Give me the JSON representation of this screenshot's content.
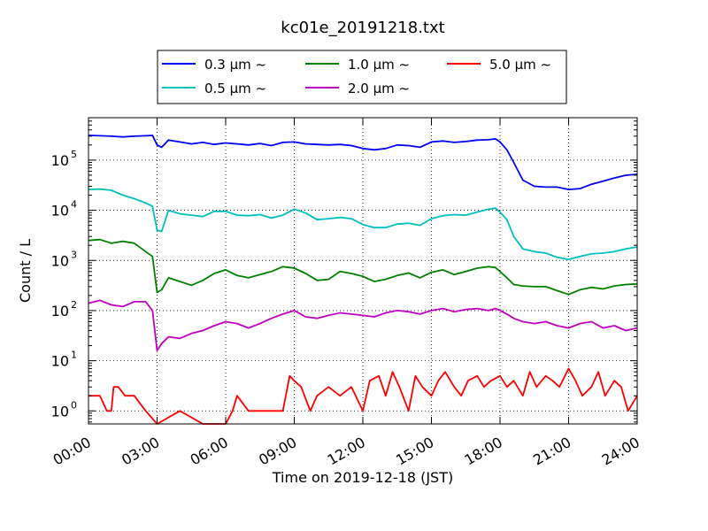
{
  "chart_data": {
    "type": "line",
    "title": "kc01e_20191218.txt",
    "xlabel": "Time on 2019-12-18 (JST)",
    "ylabel": "Count / L",
    "x_unit": "hour",
    "xlim": [
      0,
      24
    ],
    "ylim": [
      0.55,
      700000
    ],
    "yscale": "log",
    "grid": true,
    "legend_position": "top-center",
    "x_ticks": [
      {
        "value": 0,
        "label": "00:00"
      },
      {
        "value": 3,
        "label": "03:00"
      },
      {
        "value": 6,
        "label": "06:00"
      },
      {
        "value": 9,
        "label": "09:00"
      },
      {
        "value": 12,
        "label": "12:00"
      },
      {
        "value": 15,
        "label": "15:00"
      },
      {
        "value": 18,
        "label": "18:00"
      },
      {
        "value": 21,
        "label": "21:00"
      },
      {
        "value": 24,
        "label": "24:00"
      }
    ],
    "y_ticks": [
      {
        "value": 1,
        "base": "10",
        "exp": "0"
      },
      {
        "value": 10,
        "base": "10",
        "exp": "1"
      },
      {
        "value": 100,
        "base": "10",
        "exp": "2"
      },
      {
        "value": 1000,
        "base": "10",
        "exp": "3"
      },
      {
        "value": 10000,
        "base": "10",
        "exp": "4"
      },
      {
        "value": 100000,
        "base": "10",
        "exp": "5"
      }
    ],
    "series": [
      {
        "name": "0.3 µm  ~",
        "color": "#0000ff",
        "x": [
          0,
          0.5,
          1,
          1.5,
          2,
          2.5,
          2.8,
          3.0,
          3.2,
          3.5,
          4,
          4.5,
          5,
          5.5,
          6,
          6.5,
          7,
          7.5,
          8,
          8.5,
          9,
          9.5,
          10,
          10.5,
          11,
          11.5,
          12,
          12.5,
          13,
          13.5,
          14,
          14.5,
          15,
          15.5,
          16,
          16.5,
          17,
          17.5,
          17.8,
          18,
          18.3,
          18.6,
          19,
          19.5,
          20,
          20.5,
          21,
          21.5,
          22,
          22.5,
          23,
          23.5,
          24
        ],
        "y": [
          310000,
          305000,
          300000,
          290000,
          300000,
          305000,
          310000,
          200000,
          180000,
          250000,
          230000,
          210000,
          225000,
          205000,
          220000,
          210000,
          200000,
          215000,
          195000,
          225000,
          230000,
          210000,
          205000,
          200000,
          205000,
          195000,
          170000,
          160000,
          170000,
          200000,
          195000,
          180000,
          230000,
          240000,
          225000,
          235000,
          250000,
          255000,
          265000,
          230000,
          160000,
          90000,
          40000,
          30000,
          29000,
          29000,
          26000,
          27000,
          33000,
          38000,
          44000,
          50000,
          52000
        ]
      },
      {
        "name": "0.5 µm  ~",
        "color": "#00bfbf",
        "x": [
          0,
          0.5,
          1,
          1.5,
          2,
          2.5,
          2.8,
          3.0,
          3.2,
          3.5,
          4,
          4.5,
          5,
          5.5,
          6,
          6.5,
          7,
          7.5,
          8,
          8.5,
          9,
          9.5,
          10,
          10.5,
          11,
          11.5,
          12,
          12.5,
          13,
          13.5,
          14,
          14.5,
          15,
          15.5,
          16,
          16.5,
          17,
          17.5,
          17.8,
          18,
          18.3,
          18.6,
          19,
          19.5,
          20,
          20.5,
          21,
          21.5,
          22,
          22.5,
          23,
          23.5,
          24
        ],
        "y": [
          26000,
          26500,
          25000,
          20000,
          17000,
          14000,
          12000,
          4000,
          3800,
          10000,
          8500,
          8000,
          7500,
          9500,
          9500,
          8000,
          7800,
          8200,
          7000,
          8000,
          10500,
          8800,
          6500,
          6800,
          7200,
          6800,
          5200,
          4500,
          4500,
          5300,
          5500,
          5000,
          6800,
          7800,
          8200,
          8000,
          9200,
          10500,
          11000,
          9200,
          6500,
          3000,
          1700,
          1500,
          1400,
          1150,
          1050,
          1200,
          1350,
          1400,
          1500,
          1700,
          1850
        ]
      },
      {
        "name": "1.0 µm  ~",
        "color": "#008000",
        "x": [
          0,
          0.5,
          1,
          1.5,
          2,
          2.5,
          2.8,
          3.0,
          3.2,
          3.5,
          4,
          4.5,
          5,
          5.5,
          6,
          6.5,
          7,
          7.5,
          8,
          8.5,
          9,
          9.5,
          10,
          10.5,
          11,
          11.5,
          12,
          12.5,
          13,
          13.5,
          14,
          14.5,
          15,
          15.5,
          16,
          16.5,
          17,
          17.5,
          17.8,
          18,
          18.3,
          18.6,
          19,
          19.5,
          20,
          20.5,
          21,
          21.5,
          22,
          22.5,
          23,
          23.5,
          24
        ],
        "y": [
          2500,
          2600,
          2200,
          2400,
          2200,
          1500,
          1200,
          230,
          260,
          450,
          380,
          320,
          400,
          550,
          650,
          500,
          450,
          520,
          600,
          750,
          700,
          550,
          400,
          420,
          600,
          550,
          480,
          380,
          420,
          500,
          560,
          450,
          580,
          650,
          520,
          600,
          700,
          750,
          720,
          600,
          450,
          330,
          310,
          300,
          300,
          250,
          210,
          260,
          290,
          270,
          310,
          330,
          340
        ]
      },
      {
        "name": "2.0 µm  ~",
        "color": "#bf00bf",
        "x": [
          0,
          0.5,
          1,
          1.5,
          2,
          2.5,
          2.8,
          3.0,
          3.2,
          3.5,
          4,
          4.5,
          5,
          5.5,
          6,
          6.5,
          7,
          7.5,
          8,
          8.5,
          9,
          9.5,
          10,
          10.5,
          11,
          11.5,
          12,
          12.5,
          13,
          13.5,
          14,
          14.5,
          15,
          15.5,
          16,
          16.5,
          17,
          17.5,
          17.8,
          18,
          18.3,
          18.6,
          19,
          19.5,
          20,
          20.5,
          21,
          21.5,
          22,
          22.5,
          23,
          23.5,
          24
        ],
        "y": [
          140,
          160,
          130,
          120,
          150,
          150,
          100,
          16,
          22,
          30,
          28,
          35,
          40,
          50,
          60,
          55,
          45,
          55,
          70,
          85,
          100,
          75,
          70,
          80,
          90,
          85,
          80,
          75,
          90,
          100,
          95,
          85,
          100,
          110,
          95,
          105,
          110,
          100,
          110,
          100,
          85,
          70,
          60,
          55,
          60,
          50,
          45,
          55,
          60,
          45,
          50,
          40,
          45
        ]
      },
      {
        "name": "5.0 µm  ~",
        "color": "#ff0000",
        "x": [
          0,
          0.5,
          0.8,
          1,
          1.1,
          1.3,
          1.6,
          2,
          2.5,
          3,
          4,
          5,
          6,
          6.3,
          6.5,
          7,
          8,
          8.5,
          8.8,
          9,
          9.3,
          9.7,
          10,
          10.5,
          11,
          11.5,
          12,
          12.3,
          12.7,
          13,
          13.3,
          13.6,
          14,
          14.3,
          14.6,
          15,
          15.3,
          15.6,
          16,
          16.3,
          16.6,
          17,
          17.3,
          17.6,
          18,
          18.3,
          18.6,
          19,
          19.3,
          19.6,
          20,
          20.3,
          20.6,
          21,
          21.3,
          21.6,
          22,
          22.3,
          22.6,
          23,
          23.3,
          23.6,
          24
        ],
        "y": [
          2,
          2,
          1,
          1,
          3,
          3,
          2,
          2,
          1,
          0.5,
          1,
          0.5,
          0.5,
          1,
          2,
          1,
          1,
          1,
          5,
          4,
          3,
          1,
          2,
          3,
          2,
          3,
          1,
          4,
          5,
          2,
          6,
          3,
          1,
          5,
          3,
          2,
          4,
          6,
          3,
          2,
          4,
          5,
          3,
          4,
          5,
          3,
          4,
          2,
          6,
          3,
          5,
          4,
          3,
          7,
          4,
          2,
          3,
          6,
          2,
          4,
          3,
          1,
          2
        ]
      }
    ]
  }
}
